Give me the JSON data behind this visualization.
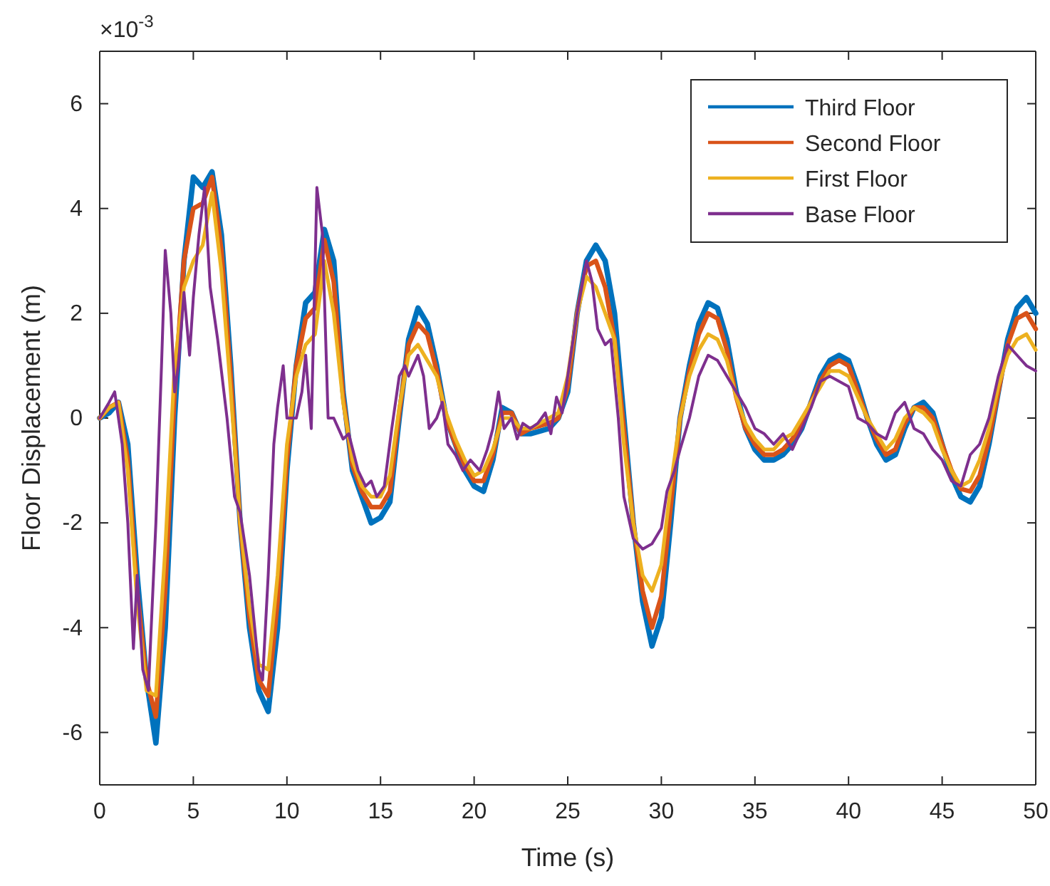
{
  "chart_data": {
    "type": "line",
    "xlabel": "Time (s)",
    "ylabel": "Floor Displacement (m)",
    "annotations": [
      "×10$^{-3}$"
    ],
    "xlim": [
      0,
      50
    ],
    "xticks": [
      0,
      5,
      10,
      15,
      20,
      25,
      30,
      35,
      40,
      45,
      50
    ],
    "ylim": [
      -7,
      7
    ],
    "yticks": [
      -6,
      -4,
      -2,
      0,
      2,
      4,
      6
    ],
    "grid": false,
    "legend": "top right",
    "line_style": "solid",
    "marker": "none",
    "series": [
      {
        "name": "Third Floor",
        "color": "#0072bd",
        "x": [
          0,
          0.5,
          1,
          1.5,
          2,
          2.5,
          3,
          3.5,
          4,
          4.5,
          5,
          5.5,
          6,
          6.5,
          7,
          7.5,
          8,
          8.5,
          9,
          9.5,
          10,
          10.5,
          11,
          11.5,
          12,
          12.5,
          13,
          13.5,
          14,
          14.5,
          15,
          15.5,
          16,
          16.5,
          17,
          17.5,
          18,
          18.5,
          19,
          19.5,
          20,
          20.5,
          21,
          21.5,
          22,
          22.5,
          23,
          24,
          24.5,
          25,
          25.5,
          26,
          26.5,
          27,
          27.5,
          28,
          28.5,
          29,
          29.5,
          30,
          30.5,
          31,
          31.5,
          32,
          32.5,
          33,
          33.5,
          34,
          34.5,
          35,
          35.5,
          36,
          36.5,
          37,
          37.5,
          38,
          38.5,
          39,
          39.5,
          40,
          40.5,
          41,
          41.5,
          42,
          42.5,
          43,
          43.5,
          44,
          44.5,
          45,
          45.5,
          46,
          46.5,
          47,
          47.5,
          48,
          48.5,
          49,
          49.5,
          50
        ],
        "values": [
          0,
          0.1,
          0.3,
          -0.5,
          -3,
          -5,
          -6.2,
          -4,
          0,
          3,
          4.6,
          4.4,
          4.7,
          3.5,
          1,
          -2,
          -4,
          -5.2,
          -5.6,
          -4,
          -1,
          1,
          2.2,
          2.4,
          3.6,
          3,
          0.5,
          -1,
          -1.5,
          -2,
          -1.9,
          -1.6,
          0,
          1.5,
          2.1,
          1.8,
          1,
          0,
          -0.5,
          -1,
          -1.3,
          -1.4,
          -0.8,
          0.2,
          0.1,
          -0.3,
          -0.3,
          -0.2,
          0,
          0.5,
          2,
          3,
          3.3,
          3,
          2,
          0,
          -2,
          -3.5,
          -4.35,
          -3.8,
          -2,
          0,
          1,
          1.8,
          2.2,
          2.1,
          1.5,
          0.5,
          -0.2,
          -0.6,
          -0.8,
          -0.8,
          -0.7,
          -0.5,
          -0.2,
          0.3,
          0.8,
          1.1,
          1.2,
          1.1,
          0.6,
          0,
          -0.5,
          -0.8,
          -0.7,
          -0.2,
          0.2,
          0.3,
          0.1,
          -0.5,
          -1.1,
          -1.5,
          -1.6,
          -1.3,
          -0.5,
          0.5,
          1.5,
          2.1,
          2.3,
          2
        ]
      },
      {
        "name": "Second Floor",
        "color": "#d95319",
        "x": [
          0,
          0.5,
          1,
          1.5,
          2,
          2.5,
          3,
          3.5,
          4,
          4.5,
          5,
          5.5,
          6,
          6.5,
          7,
          7.5,
          8,
          8.5,
          9,
          9.5,
          10,
          10.5,
          11,
          11.5,
          12,
          12.5,
          13,
          13.5,
          14,
          14.5,
          15,
          15.5,
          16,
          16.5,
          17,
          17.5,
          18,
          18.5,
          19,
          19.5,
          20,
          20.5,
          21,
          21.5,
          22,
          22.5,
          23,
          24,
          24.5,
          25,
          25.5,
          26,
          26.5,
          27,
          27.5,
          28,
          28.5,
          29,
          29.5,
          30,
          30.5,
          31,
          31.5,
          32,
          32.5,
          33,
          33.5,
          34,
          34.5,
          35,
          35.5,
          36,
          36.5,
          37,
          37.5,
          38,
          38.5,
          39,
          39.5,
          40,
          40.5,
          41,
          41.5,
          42,
          42.5,
          43,
          43.5,
          44,
          44.5,
          45,
          45.5,
          46,
          46.5,
          47,
          47.5,
          48,
          48.5,
          49,
          49.5,
          50
        ],
        "values": [
          0,
          0.2,
          0.3,
          -0.8,
          -3.3,
          -5,
          -5.7,
          -3.3,
          0.5,
          3,
          4,
          4.1,
          4.6,
          3.2,
          0.8,
          -2,
          -3.8,
          -5,
          -5.3,
          -3.5,
          -0.8,
          1,
          1.9,
          2.1,
          3.4,
          2.6,
          0.4,
          -0.9,
          -1.4,
          -1.7,
          -1.7,
          -1.4,
          0.1,
          1.4,
          1.8,
          1.6,
          0.9,
          0,
          -0.5,
          -0.9,
          -1.2,
          -1.2,
          -0.7,
          0.1,
          0.1,
          -0.3,
          -0.2,
          -0.1,
          0,
          0.6,
          2,
          2.9,
          3,
          2.5,
          1.5,
          -0.2,
          -2,
          -3.3,
          -4,
          -3.4,
          -1.7,
          0,
          0.9,
          1.6,
          2,
          1.9,
          1.3,
          0.4,
          -0.2,
          -0.5,
          -0.7,
          -0.7,
          -0.6,
          -0.4,
          -0.1,
          0.3,
          0.7,
          1,
          1.1,
          1,
          0.5,
          0,
          -0.4,
          -0.7,
          -0.6,
          -0.1,
          0.2,
          0.2,
          0,
          -0.5,
          -1,
          -1.35,
          -1.4,
          -1.1,
          -0.4,
          0.5,
          1.4,
          1.9,
          2,
          1.7
        ]
      },
      {
        "name": "First Floor",
        "color": "#edb120",
        "x": [
          0,
          0.5,
          1,
          1.5,
          2,
          2.5,
          3,
          3.5,
          4,
          4.5,
          5,
          5.5,
          6,
          6.5,
          7,
          7.5,
          8,
          8.5,
          9,
          9.5,
          10,
          10.5,
          11,
          11.5,
          12,
          12.5,
          13,
          13.5,
          14,
          14.5,
          15,
          15.5,
          16,
          16.5,
          17,
          17.5,
          18,
          18.5,
          19,
          19.5,
          20,
          20.5,
          21,
          21.5,
          22,
          22.5,
          23,
          24,
          24.5,
          25,
          25.5,
          26,
          26.5,
          27,
          27.5,
          28,
          28.5,
          29,
          29.5,
          30,
          30.5,
          31,
          31.5,
          32,
          32.5,
          33,
          33.5,
          34,
          34.5,
          35,
          35.5,
          36,
          36.5,
          37,
          37.5,
          38,
          38.5,
          39,
          39.5,
          40,
          40.5,
          41,
          41.5,
          42,
          42.5,
          43,
          43.5,
          44,
          44.5,
          45,
          45.5,
          46,
          46.5,
          47,
          47.5,
          48,
          48.5,
          49,
          49.5,
          50
        ],
        "values": [
          0,
          0.2,
          0.3,
          -1,
          -3.5,
          -5.2,
          -5.3,
          -2.5,
          1,
          2.5,
          3,
          3.3,
          4.3,
          2.8,
          0.5,
          -2,
          -3.6,
          -4.7,
          -4.8,
          -3,
          -0.5,
          0.8,
          1.4,
          1.6,
          3,
          2,
          0.3,
          -0.8,
          -1.3,
          -1.5,
          -1.5,
          -1.1,
          0.2,
          1.2,
          1.4,
          1.1,
          0.8,
          0.1,
          -0.4,
          -0.8,
          -1.1,
          -1,
          -0.6,
          0,
          0,
          -0.2,
          -0.2,
          0,
          0.1,
          0.8,
          2,
          2.7,
          2.5,
          2,
          1.5,
          -0.5,
          -2,
          -3,
          -3.3,
          -2.8,
          -1.3,
          0,
          0.8,
          1.3,
          1.6,
          1.5,
          1.1,
          0.4,
          -0.1,
          -0.4,
          -0.6,
          -0.6,
          -0.4,
          -0.3,
          0,
          0.3,
          0.6,
          0.9,
          0.9,
          0.8,
          0.4,
          0,
          -0.3,
          -0.6,
          -0.4,
          0,
          0.2,
          0.1,
          -0.1,
          -0.6,
          -1,
          -1.3,
          -1.2,
          -0.8,
          -0.2,
          0.6,
          1.2,
          1.5,
          1.6,
          1.3
        ]
      },
      {
        "name": "Base Floor",
        "color": "#7e2f8e",
        "x": [
          0,
          0.5,
          0.8,
          1.2,
          1.5,
          1.8,
          2,
          2.3,
          2.6,
          3,
          3.3,
          3.5,
          3.8,
          4,
          4.2,
          4.5,
          4.8,
          5,
          5.3,
          5.6,
          5.9,
          6.3,
          6.8,
          7.2,
          7.5,
          8,
          8.5,
          8.7,
          9,
          9.3,
          9.5,
          9.8,
          10,
          10.5,
          10.8,
          11,
          11.3,
          11.6,
          11.9,
          12.2,
          12.5,
          13,
          13.3,
          13.8,
          14.2,
          14.5,
          14.8,
          15.2,
          15.6,
          16,
          16.3,
          16.5,
          17,
          17.3,
          17.6,
          18,
          18.3,
          18.6,
          19,
          19.4,
          19.8,
          20.3,
          20.7,
          21,
          21.3,
          21.6,
          22,
          22.3,
          22.6,
          23,
          23.4,
          23.8,
          24.1,
          24.4,
          24.7,
          25,
          25.5,
          26,
          26.3,
          26.6,
          27,
          27.3,
          27.7,
          28,
          28.5,
          29,
          29.5,
          30,
          30.3,
          30.7,
          31,
          31.5,
          32,
          32.5,
          33,
          33.5,
          34,
          34.5,
          35,
          35.5,
          36,
          36.5,
          37,
          37.5,
          38,
          38.5,
          39,
          39.5,
          40,
          40.5,
          41,
          41.5,
          42,
          42.5,
          43,
          43.5,
          44,
          44.5,
          45,
          45.5,
          46,
          46.5,
          47,
          47.5,
          48,
          48.5,
          49,
          49.5,
          50
        ],
        "values": [
          0,
          0.3,
          0.5,
          -0.5,
          -2,
          -4.4,
          -3,
          -4.8,
          -5.2,
          -2,
          1,
          3.2,
          2,
          0.5,
          1,
          2.4,
          1.2,
          2.3,
          3.5,
          4.4,
          2.5,
          1.5,
          0,
          -1.5,
          -1.8,
          -3,
          -4.8,
          -5,
          -3,
          -0.5,
          0.2,
          1,
          0,
          0,
          0.5,
          1.2,
          -0.2,
          4.4,
          3.5,
          0,
          0,
          -0.4,
          -0.3,
          -1,
          -1.3,
          -1.2,
          -1.5,
          -1.3,
          -0.2,
          0.8,
          1,
          0.8,
          1.2,
          0.8,
          -0.2,
          0,
          0.3,
          -0.5,
          -0.7,
          -1,
          -0.8,
          -1,
          -0.6,
          -0.2,
          0.5,
          -0.2,
          0,
          -0.4,
          -0.1,
          -0.2,
          -0.1,
          0.1,
          -0.3,
          0.4,
          0.1,
          0.8,
          2,
          3,
          2.6,
          1.7,
          1.4,
          1.5,
          0,
          -1.5,
          -2.3,
          -2.5,
          -2.4,
          -2.1,
          -1.4,
          -1,
          -0.6,
          0,
          0.8,
          1.2,
          1.1,
          0.8,
          0.5,
          0.2,
          -0.2,
          -0.3,
          -0.5,
          -0.3,
          -0.6,
          -0.2,
          0.2,
          0.7,
          0.8,
          0.7,
          0.6,
          0,
          -0.1,
          -0.3,
          -0.4,
          0.1,
          0.3,
          -0.2,
          -0.3,
          -0.6,
          -0.8,
          -1.2,
          -1.3,
          -0.7,
          -0.5,
          0,
          0.8,
          1.4,
          1.2,
          1,
          0.9
        ]
      }
    ]
  }
}
